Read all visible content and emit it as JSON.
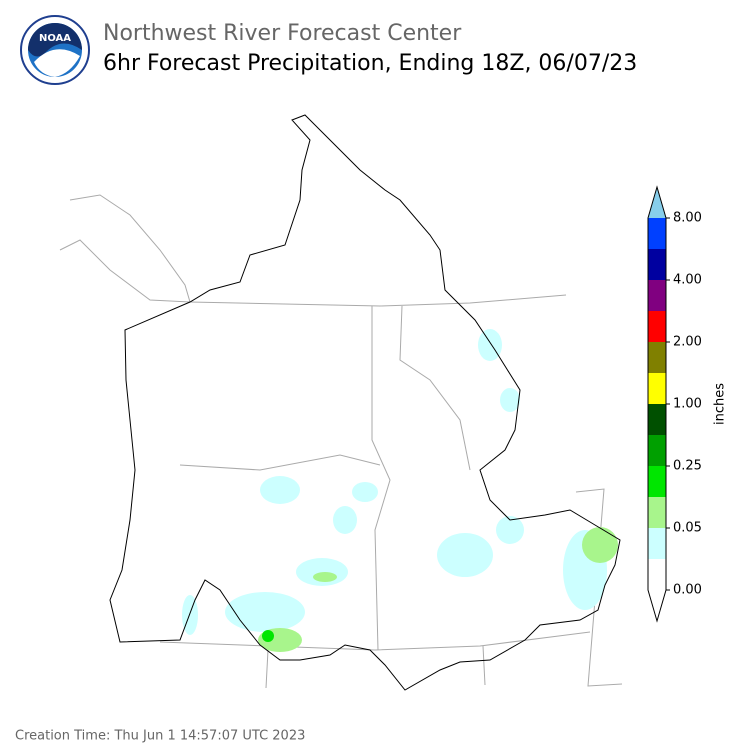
{
  "header": {
    "title": "Northwest River Forecast Center",
    "subtitle": "6hr Forecast Precipitation, Ending 18Z, 06/07/23"
  },
  "logo": {
    "text": "NOAA"
  },
  "colorbar": {
    "label": "inches",
    "colors": [
      "#ffffff",
      "#ccffff",
      "#a8f58c",
      "#00e600",
      "#00a000",
      "#005000",
      "#ffff00",
      "#808000",
      "#ff0000",
      "#800080",
      "#0000a0",
      "#0040ff"
    ],
    "extend_color": "#87ceeb",
    "ticks": [
      {
        "value": 0,
        "label": "0.00"
      },
      {
        "value": 0.05,
        "label": "0.05"
      },
      {
        "value": 0.25,
        "label": "0.25"
      },
      {
        "value": 1,
        "label": "1.00"
      },
      {
        "value": 2,
        "label": "2.00"
      },
      {
        "value": 4,
        "label": "4.00"
      },
      {
        "value": 8,
        "label": "8.00"
      }
    ]
  },
  "footer": {
    "creation": "Creation Time: Thu Jun 1 14:57:07 UTC 2023"
  }
}
